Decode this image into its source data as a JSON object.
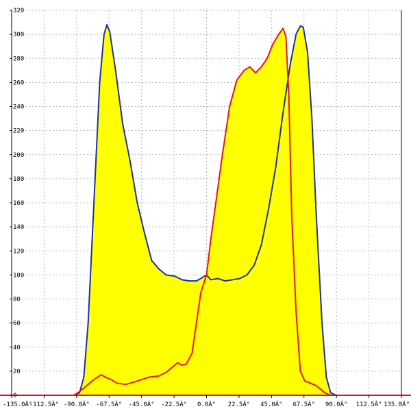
{
  "chart_data": {
    "type": "area",
    "title": "",
    "xlabel": "",
    "ylabel": "",
    "xlim": [
      -135,
      135
    ],
    "ylim": [
      0,
      320
    ],
    "grid": true,
    "x_ticks": [
      {
        "value": -135,
        "label": "-135.0Â°"
      },
      {
        "value": -112.5,
        "label": "-112.5Â°"
      },
      {
        "value": -90,
        "label": "-90.0Â°"
      },
      {
        "value": -67.5,
        "label": "-67.5Â°"
      },
      {
        "value": -45,
        "label": "-45.0Â°"
      },
      {
        "value": -22.5,
        "label": "-22.5Â°"
      },
      {
        "value": 0,
        "label": "0.0Â°"
      },
      {
        "value": 22.5,
        "label": "22.5Â°"
      },
      {
        "value": 45,
        "label": "45.0Â°"
      },
      {
        "value": 67.5,
        "label": "67.5Â°"
      },
      {
        "value": 90,
        "label": "90.0Â°"
      },
      {
        "value": 112.5,
        "label": "112.5Â°"
      },
      {
        "value": 135,
        "label": "135.0Â°"
      }
    ],
    "y_ticks": [
      0,
      20,
      40,
      60,
      80,
      100,
      120,
      140,
      160,
      180,
      200,
      220,
      240,
      260,
      280,
      300,
      320
    ],
    "fill_color": "#ffff00",
    "series": [
      {
        "color": "#1a2fb0",
        "points": [
          [
            -135,
            0
          ],
          [
            -92,
            0
          ],
          [
            -88,
            2
          ],
          [
            -85,
            15
          ],
          [
            -82,
            60
          ],
          [
            -78,
            160
          ],
          [
            -74,
            260
          ],
          [
            -71,
            300
          ],
          [
            -69,
            308
          ],
          [
            -67,
            302
          ],
          [
            -63,
            270
          ],
          [
            -58,
            225
          ],
          [
            -53,
            195
          ],
          [
            -48,
            160
          ],
          [
            -43,
            135
          ],
          [
            -38,
            112
          ],
          [
            -33,
            105
          ],
          [
            -28,
            100
          ],
          [
            -22,
            99
          ],
          [
            -17,
            96
          ],
          [
            -12,
            95
          ],
          [
            -7,
            95
          ],
          [
            -4,
            97
          ],
          [
            0,
            100
          ],
          [
            3,
            96
          ],
          [
            8,
            97
          ],
          [
            13,
            95
          ],
          [
            18,
            96
          ],
          [
            23,
            97
          ],
          [
            28,
            100
          ],
          [
            33,
            108
          ],
          [
            38,
            125
          ],
          [
            43,
            155
          ],
          [
            48,
            190
          ],
          [
            53,
            235
          ],
          [
            58,
            275
          ],
          [
            62,
            300
          ],
          [
            65,
            307
          ],
          [
            67,
            306
          ],
          [
            70,
            285
          ],
          [
            73,
            230
          ],
          [
            76,
            150
          ],
          [
            80,
            60
          ],
          [
            83,
            15
          ],
          [
            86,
            2
          ],
          [
            90,
            0
          ],
          [
            135,
            0
          ]
        ]
      },
      {
        "color": "#e8141c",
        "points": [
          [
            -135,
            0
          ],
          [
            -92,
            0
          ],
          [
            -88,
            3
          ],
          [
            -84,
            7
          ],
          [
            -78,
            13
          ],
          [
            -73,
            17
          ],
          [
            -70,
            15
          ],
          [
            -66,
            13
          ],
          [
            -62,
            10
          ],
          [
            -56,
            9
          ],
          [
            -50,
            11
          ],
          [
            -45,
            13
          ],
          [
            -40,
            15
          ],
          [
            -33,
            16
          ],
          [
            -28,
            19
          ],
          [
            -23,
            24
          ],
          [
            -20,
            27
          ],
          [
            -17,
            25
          ],
          [
            -14,
            26
          ],
          [
            -10,
            35
          ],
          [
            -7,
            60
          ],
          [
            -4,
            85
          ],
          [
            0,
            100
          ],
          [
            3,
            130
          ],
          [
            7,
            165
          ],
          [
            11,
            200
          ],
          [
            16,
            240
          ],
          [
            21,
            262
          ],
          [
            26,
            270
          ],
          [
            30,
            273
          ],
          [
            34,
            268
          ],
          [
            38,
            273
          ],
          [
            42,
            280
          ],
          [
            46,
            292
          ],
          [
            50,
            300
          ],
          [
            53,
            305
          ],
          [
            55,
            298
          ],
          [
            57,
            250
          ],
          [
            59,
            150
          ],
          [
            62,
            70
          ],
          [
            65,
            20
          ],
          [
            68,
            12
          ],
          [
            72,
            10
          ],
          [
            76,
            8
          ],
          [
            82,
            2
          ],
          [
            86,
            0
          ],
          [
            135,
            0
          ]
        ]
      }
    ]
  }
}
